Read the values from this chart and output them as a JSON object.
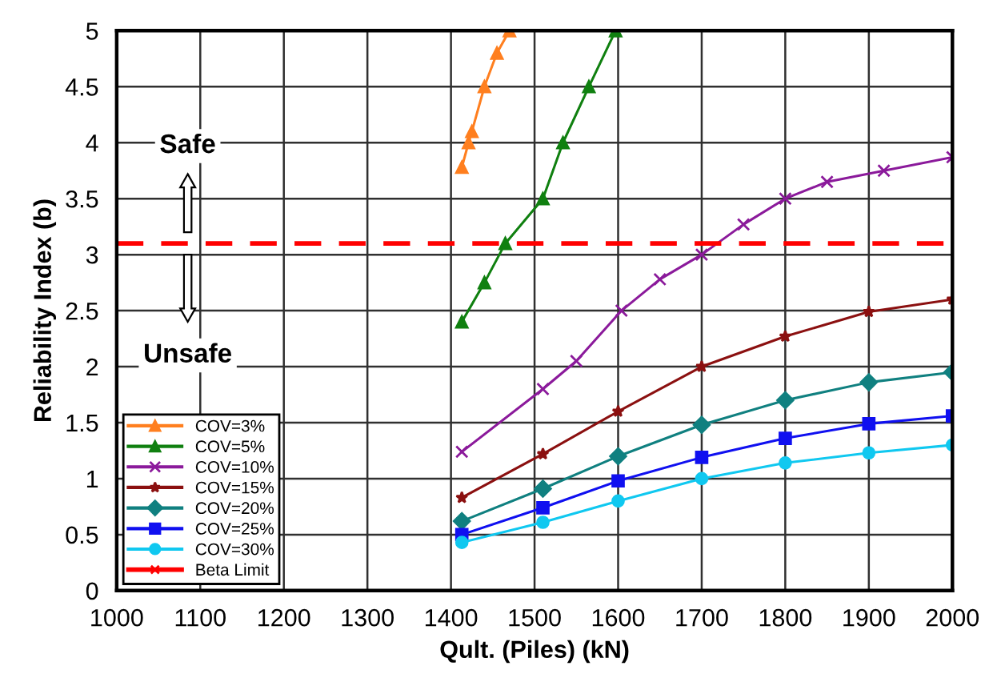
{
  "chart_data": {
    "type": "line",
    "xlabel": "Qult. (Piles) (kN)",
    "ylabel": "Reliability Index (b)",
    "xlim": [
      1000,
      2000
    ],
    "xticks": [
      1000,
      1100,
      1200,
      1300,
      1400,
      1500,
      1600,
      1700,
      1800,
      1900,
      2000
    ],
    "ylim": [
      0,
      5
    ],
    "yticks": [
      0,
      0.5,
      1,
      1.5,
      2,
      2.5,
      3,
      3.5,
      4,
      4.5,
      5
    ],
    "grid": true,
    "legend": "bottom left",
    "series": [
      {
        "name": "COV=3%",
        "color": "#ff7f1f",
        "marker": "triangle",
        "x": [
          1413,
          1421,
          1425,
          1440,
          1455,
          1470
        ],
        "values": [
          3.78,
          4.0,
          4.1,
          4.5,
          4.8,
          5.0
        ]
      },
      {
        "name": "COV=5%",
        "color": "#108010",
        "marker": "triangle",
        "x": [
          1413,
          1440,
          1465,
          1510,
          1534,
          1565,
          1597
        ],
        "values": [
          2.4,
          2.75,
          3.1,
          3.5,
          4.0,
          4.5,
          5.0
        ]
      },
      {
        "name": "COV=10%",
        "color": "#8b1a9b",
        "marker": "cross",
        "x": [
          1413,
          1510,
          1550,
          1604,
          1650,
          1700,
          1750,
          1800,
          1850,
          1918,
          2000
        ],
        "values": [
          1.24,
          1.8,
          2.05,
          2.5,
          2.78,
          3.0,
          3.27,
          3.5,
          3.65,
          3.75,
          3.87
        ]
      },
      {
        "name": "COV=15%",
        "color": "#8b1010",
        "marker": "star",
        "x": [
          1413,
          1510,
          1600,
          1700,
          1800,
          1900,
          2000
        ],
        "values": [
          0.83,
          1.22,
          1.6,
          2.0,
          2.27,
          2.49,
          2.6
        ]
      },
      {
        "name": "COV=20%",
        "color": "#108080",
        "marker": "diamond",
        "x": [
          1413,
          1510,
          1600,
          1700,
          1800,
          1900,
          2000
        ],
        "values": [
          0.62,
          0.91,
          1.2,
          1.48,
          1.7,
          1.86,
          1.95
        ]
      },
      {
        "name": "COV=25%",
        "color": "#1010f0",
        "marker": "square",
        "x": [
          1413,
          1510,
          1600,
          1700,
          1800,
          1900,
          2000
        ],
        "values": [
          0.5,
          0.74,
          0.98,
          1.19,
          1.36,
          1.49,
          1.56
        ]
      },
      {
        "name": "COV=30%",
        "color": "#10c8f0",
        "marker": "circle",
        "x": [
          1413,
          1510,
          1600,
          1700,
          1800,
          1900,
          2000
        ],
        "values": [
          0.43,
          0.61,
          0.8,
          1.0,
          1.14,
          1.23,
          1.3
        ]
      }
    ],
    "ref_lines": [
      {
        "axis": "y",
        "value": 3.1,
        "label": "Beta Limit",
        "color": "#ff0000",
        "line_style": "dashed"
      }
    ],
    "annotations": [
      "Safe",
      "Unsafe"
    ]
  }
}
